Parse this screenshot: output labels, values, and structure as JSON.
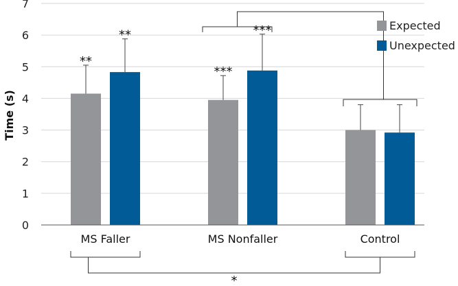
{
  "chart_data": {
    "type": "bar",
    "title": "",
    "xlabel": "",
    "ylabel": "Time (s)",
    "ylim": [
      0,
      7
    ],
    "yticks": [
      0,
      1,
      2,
      3,
      4,
      5,
      6,
      7
    ],
    "grid": true,
    "legend": "top-right",
    "categories": [
      "MS Faller",
      "MS Nonfaller",
      "Control"
    ],
    "series": [
      {
        "name": "Expected",
        "color": "#939598",
        "values": [
          4.15,
          3.95,
          3.0
        ],
        "errors": [
          0.9,
          0.77,
          0.8
        ],
        "significance": [
          "**",
          "***",
          ""
        ]
      },
      {
        "name": "Unexpected",
        "color": "#005b96",
        "values": [
          4.83,
          4.88,
          2.92
        ],
        "errors": [
          1.05,
          1.15,
          0.88
        ],
        "significance": [
          "**",
          "***",
          ""
        ]
      }
    ],
    "comparisons": [
      {
        "from": "MS Nonfaller",
        "to": "Control",
        "position": "top",
        "label": ""
      },
      {
        "from": "MS Faller",
        "to": "Control",
        "position": "bottom",
        "label": "*"
      }
    ]
  }
}
